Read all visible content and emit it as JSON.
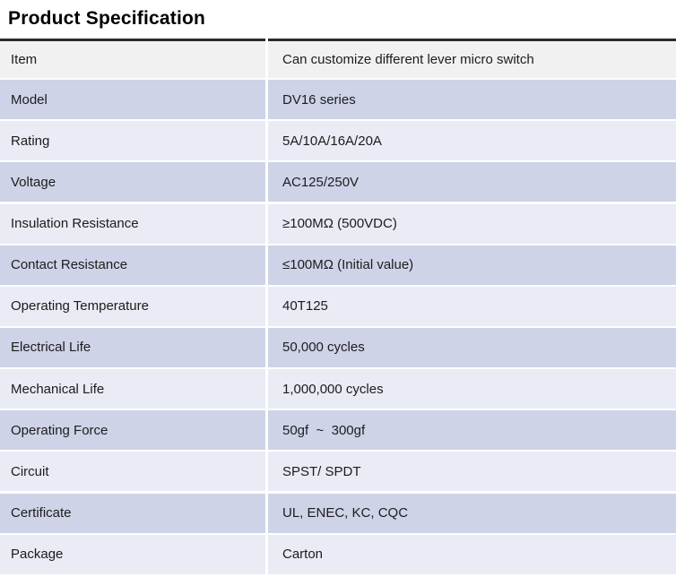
{
  "title": "Product Specification",
  "colors": {
    "row_lavender": "#cfd3e8",
    "row_light": "#e9ebf5",
    "row_gray": "#f1f1f1",
    "top_border": "#2b2b2b",
    "text": "#1c1c1c",
    "title_text": "#000000",
    "gutter": "#ffffff"
  },
  "table": {
    "rows": [
      {
        "label": "Item",
        "value": "Can customize different lever micro switch",
        "variant": "gray"
      },
      {
        "label": "Model",
        "value": "DV16 series",
        "variant": "lavender"
      },
      {
        "label": "Rating",
        "value": "5A/10A/16A/20A",
        "variant": "light"
      },
      {
        "label": "Voltage",
        "value": "AC125/250V",
        "variant": "lavender"
      },
      {
        "label": "Insulation Resistance",
        "value": "≥100MΩ (500VDC)",
        "variant": "light"
      },
      {
        "label": "Contact Resistance",
        "value": "≤100MΩ (Initial value)",
        "variant": "lavender"
      },
      {
        "label": "Operating Temperature",
        "value": "40T125",
        "variant": "light"
      },
      {
        "label": "Electrical Life",
        "value": "50,000 cycles",
        "variant": "lavender"
      },
      {
        "label": "Mechanical Life",
        "value": "1,000,000 cycles",
        "variant": "light"
      },
      {
        "label": "Operating Force",
        "value": "50gf  ~  300gf",
        "variant": "lavender"
      },
      {
        "label": "Circuit",
        "value": "SPST/ SPDT",
        "variant": "light"
      },
      {
        "label": "Certificate",
        "value": "UL, ENEC, KC, CQC",
        "variant": "lavender"
      },
      {
        "label": "Package",
        "value": "Carton",
        "variant": "light"
      }
    ]
  }
}
